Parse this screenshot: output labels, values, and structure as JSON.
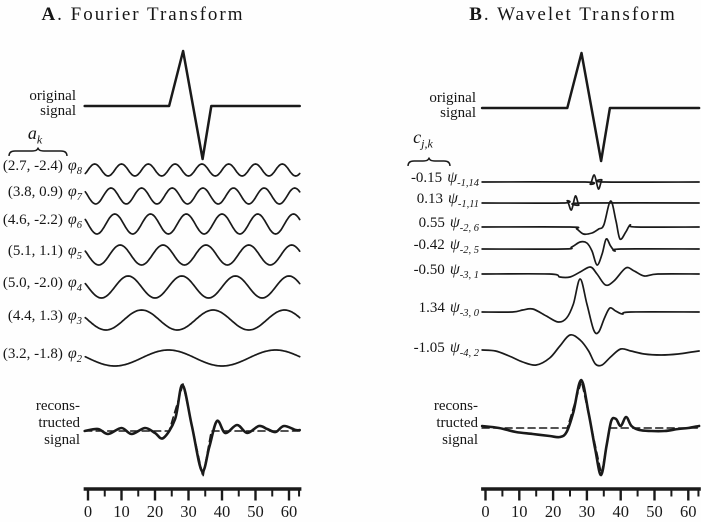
{
  "chart_data": {
    "type": "line",
    "description": "Comparison of Fourier basis decomposition and wavelet basis decomposition of a spike signal. Each panel shows the original signal, the basis functions with their coefficients, the reconstructed signal (solid) overlaid with the original (dashed), and a shared x-axis 0-63.",
    "panels": [
      {
        "key": "A",
        "title": {
          "letter": "A",
          "rest": ". Fourier Transform"
        },
        "original": {
          "label1": "original",
          "label2": "signal",
          "points": [
            [
              -1,
              0
            ],
            [
              24.2,
              0
            ],
            [
              28.4,
              55
            ],
            [
              34.2,
              -53
            ],
            [
              36.8,
              0
            ],
            [
              63.2,
              0
            ]
          ]
        },
        "coeff_symbol": {
          "base": "a",
          "sub": "k"
        },
        "rows": [
          {
            "coeff": "(2.7, -2.4)",
            "basis_symbol": "φ",
            "basis_sub": "8",
            "kind": "sinusoid",
            "cycles": 8,
            "amp": 6,
            "dir": 1
          },
          {
            "coeff": "(3.8, 0.9)",
            "basis_symbol": "φ",
            "basis_sub": "7",
            "kind": "sinusoid",
            "cycles": 7,
            "amp": 8,
            "dir": -1
          },
          {
            "coeff": "(4.6, -2.2)",
            "basis_symbol": "φ",
            "basis_sub": "6",
            "kind": "sinusoid",
            "cycles": 6,
            "amp": 10,
            "dir": -1
          },
          {
            "coeff": "(5.1, 1.1)",
            "basis_symbol": "φ",
            "basis_sub": "5",
            "kind": "sinusoid",
            "cycles": 5,
            "amp": 10,
            "dir": -1
          },
          {
            "coeff": "(5.0, -2.0)",
            "basis_symbol": "φ",
            "basis_sub": "4",
            "kind": "sinusoid",
            "cycles": 4,
            "amp": 11,
            "dir": -1
          },
          {
            "coeff": "(4.4, 1.3)",
            "basis_symbol": "φ",
            "basis_sub": "3",
            "kind": "sinusoid",
            "cycles": 3,
            "amp": 10,
            "dir": -1
          },
          {
            "coeff": "(3.2, -1.8)",
            "basis_symbol": "φ",
            "basis_sub": "2",
            "kind": "sinusoid",
            "cycles": 2,
            "amp": 8,
            "dir": -1
          }
        ],
        "reconstructed": {
          "label1": "recons-",
          "label2": "tructed",
          "label3": "signal",
          "solid": [
            [
              -1,
              0
            ],
            [
              3,
              2
            ],
            [
              6,
              -3
            ],
            [
              10,
              3
            ],
            [
              13,
              -3
            ],
            [
              17,
              3
            ],
            [
              20,
              -2
            ],
            [
              22.5,
              -7
            ],
            [
              26,
              12
            ],
            [
              28.2,
              46
            ],
            [
              31,
              5
            ],
            [
              34,
              -40
            ],
            [
              36.2,
              -16
            ],
            [
              38.5,
              10
            ],
            [
              41,
              -2
            ],
            [
              44.5,
              6
            ],
            [
              47.5,
              -2
            ],
            [
              51,
              5
            ],
            [
              53.5,
              2
            ],
            [
              56,
              -1
            ],
            [
              58.5,
              5
            ],
            [
              62,
              1
            ],
            [
              63.2,
              1
            ]
          ],
          "dashed": [
            [
              -1,
              0
            ],
            [
              24.2,
              0
            ],
            [
              28.4,
              47
            ],
            [
              34.3,
              -46
            ],
            [
              36.8,
              0
            ],
            [
              63.2,
              0
            ]
          ]
        },
        "axis": {
          "tick_labels": [
            "0",
            "10",
            "20",
            "30",
            "40",
            "50",
            "60"
          ],
          "tick_values": [
            0,
            10,
            20,
            30,
            40,
            50,
            60
          ],
          "minor_values": [
            5,
            15,
            25,
            35,
            45,
            55,
            63
          ],
          "range": [
            0,
            63
          ]
        }
      },
      {
        "key": "B",
        "title": {
          "letter": "B",
          "rest": ". Wavelet Transform"
        },
        "original": {
          "label1": "original",
          "label2": "signal",
          "points": [
            [
              -1,
              0
            ],
            [
              24.2,
              0
            ],
            [
              28.4,
              55
            ],
            [
              34.2,
              -53
            ],
            [
              36.8,
              0
            ],
            [
              63.2,
              0
            ]
          ]
        },
        "coeff_symbol": {
          "base": "c",
          "sub": "j,k"
        },
        "rows": [
          {
            "coeff": "-0.15",
            "basis_symbol": "ψ",
            "basis_sub": "-1,14",
            "kind": "points",
            "points": [
              [
                -1,
                0
              ],
              [
                29.5,
                0
              ],
              [
                31,
                -2
              ],
              [
                32.2,
                7
              ],
              [
                33.4,
                -7
              ],
              [
                34.4,
                2
              ],
              [
                35.2,
                0
              ],
              [
                63.2,
                0
              ]
            ]
          },
          {
            "coeff": "0.13",
            "basis_symbol": "ψ",
            "basis_sub": "-1,11",
            "kind": "points",
            "points": [
              [
                -1,
                0
              ],
              [
                22.8,
                0
              ],
              [
                24.2,
                2
              ],
              [
                25.4,
                -7
              ],
              [
                26.6,
                7
              ],
              [
                27.6,
                -2
              ],
              [
                28.4,
                0
              ],
              [
                63.2,
                0
              ]
            ]
          },
          {
            "coeff": "0.55",
            "basis_symbol": "ψ",
            "basis_sub": "-2, 6",
            "kind": "points",
            "points": [
              [
                -1,
                0
              ],
              [
                25,
                0
              ],
              [
                27,
                -2
              ],
              [
                29,
                -7
              ],
              [
                31.5,
                -6
              ],
              [
                33.5,
                -2
              ],
              [
                35,
                2
              ],
              [
                37,
                26
              ],
              [
                38.6,
                6
              ],
              [
                39.8,
                -12
              ],
              [
                41.5,
                -5
              ],
              [
                42.8,
                2
              ],
              [
                44.5,
                0
              ],
              [
                63.2,
                0
              ]
            ]
          },
          {
            "coeff": "-0.42",
            "basis_symbol": "ψ",
            "basis_sub": "-2, 5",
            "kind": "points",
            "points": [
              [
                -1,
                0
              ],
              [
                23,
                0
              ],
              [
                25.5,
                2
              ],
              [
                28,
                7
              ],
              [
                30,
                6
              ],
              [
                31.5,
                -2
              ],
              [
                33,
                -16
              ],
              [
                34.5,
                -5
              ],
              [
                35.7,
                10
              ],
              [
                37,
                3
              ],
              [
                38.3,
                -2
              ],
              [
                40,
                0
              ],
              [
                63.2,
                0
              ]
            ]
          },
          {
            "coeff": "-0.50",
            "basis_symbol": "ψ",
            "basis_sub": "-3, 1",
            "kind": "points",
            "points": [
              [
                -1,
                0
              ],
              [
                19,
                0
              ],
              [
                22,
                -3
              ],
              [
                25,
                -3
              ],
              [
                28,
                2
              ],
              [
                31,
                7
              ],
              [
                33,
                0
              ],
              [
                35.5,
                -11
              ],
              [
                38,
                -7
              ],
              [
                41.5,
                6
              ],
              [
                44,
                3
              ],
              [
                47,
                -2
              ],
              [
                51,
                0
              ],
              [
                63.2,
                0
              ]
            ]
          },
          {
            "coeff": "1.34",
            "basis_symbol": "ψ",
            "basis_sub": "-3, 0",
            "kind": "points",
            "points": [
              [
                -1,
                0
              ],
              [
                8,
                0
              ],
              [
                11,
                2
              ],
              [
                14,
                3
              ],
              [
                18,
                -4
              ],
              [
                21.5,
                -10
              ],
              [
                24,
                -6
              ],
              [
                26,
                8
              ],
              [
                28,
                33
              ],
              [
                30,
                8
              ],
              [
                32,
                -18
              ],
              [
                33.5,
                -20
              ],
              [
                35.2,
                -6
              ],
              [
                36.8,
                4
              ],
              [
                38.5,
                1
              ],
              [
                40.5,
                -2
              ],
              [
                43,
                0
              ],
              [
                63.2,
                0
              ]
            ]
          },
          {
            "coeff": "-1.05",
            "basis_symbol": "ψ",
            "basis_sub": "-4, 2",
            "kind": "points",
            "points": [
              [
                -1,
                2
              ],
              [
                3,
                1
              ],
              [
                7,
                -4
              ],
              [
                11,
                -10
              ],
              [
                15,
                -13
              ],
              [
                19,
                -6
              ],
              [
                22,
                6
              ],
              [
                25,
                17
              ],
              [
                28,
                12
              ],
              [
                30.5,
                1
              ],
              [
                32.5,
                -12
              ],
              [
                34.5,
                -13
              ],
              [
                37,
                -5
              ],
              [
                40,
                3
              ],
              [
                43,
                1
              ],
              [
                47,
                -2
              ],
              [
                52,
                -3
              ],
              [
                57,
                -2
              ],
              [
                61,
                0
              ],
              [
                63.2,
                1
              ]
            ]
          }
        ],
        "reconstructed": {
          "label1": "recons-",
          "label2": "tructed",
          "label3": "signal",
          "solid": [
            [
              -1,
              2
            ],
            [
              4,
              0
            ],
            [
              9,
              -4
            ],
            [
              14,
              -6
            ],
            [
              19,
              -8
            ],
            [
              22,
              -9
            ],
            [
              24,
              -4
            ],
            [
              26,
              16
            ],
            [
              28.3,
              48
            ],
            [
              30.5,
              15
            ],
            [
              32.5,
              -22
            ],
            [
              34.2,
              -47
            ],
            [
              35.8,
              -18
            ],
            [
              37.2,
              7
            ],
            [
              38.6,
              9
            ],
            [
              40,
              2
            ],
            [
              41.6,
              11
            ],
            [
              43.2,
              2
            ],
            [
              45.5,
              -2
            ],
            [
              49,
              -3
            ],
            [
              53,
              -3
            ],
            [
              57,
              -1
            ],
            [
              60,
              0
            ],
            [
              63.2,
              2
            ]
          ],
          "dashed": [
            [
              -1,
              0
            ],
            [
              24.2,
              0
            ],
            [
              28.4,
              47
            ],
            [
              34.3,
              -46
            ],
            [
              36.8,
              0
            ],
            [
              63.2,
              0
            ]
          ]
        },
        "axis": {
          "tick_labels": [
            "0",
            "10",
            "20",
            "30",
            "40",
            "50",
            "60"
          ],
          "tick_values": [
            0,
            10,
            20,
            30,
            40,
            50,
            60
          ],
          "minor_values": [
            5,
            15,
            25,
            35,
            45,
            55,
            63
          ],
          "range": [
            0,
            63
          ]
        }
      }
    ],
    "ink_color": "#1a1a1a",
    "background_color": "#fefefe"
  }
}
